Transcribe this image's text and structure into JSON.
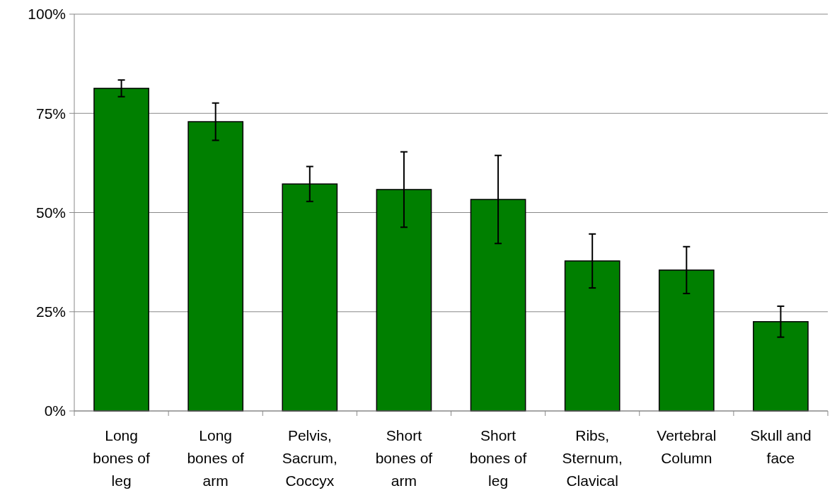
{
  "chart_data": {
    "type": "bar",
    "categories": [
      "Long\nbones of\nleg",
      "Long\nbones of\narm",
      "Pelvis,\nSacrum,\nCoccyx",
      "Short\nbones of\narm",
      "Short\nbones of\nleg",
      "Ribs,\nSternum,\nClavical",
      "Vertebral\nColumn",
      "Skull and\nface"
    ],
    "values": [
      81.3,
      72.9,
      57.2,
      55.8,
      53.3,
      37.8,
      35.5,
      22.5
    ],
    "errors": [
      2.1,
      4.7,
      4.4,
      9.5,
      11.1,
      6.8,
      5.9,
      3.9
    ],
    "color": "#007f00",
    "ylim": [
      0,
      100
    ],
    "yticks": [
      {
        "value": 0,
        "label": "0%"
      },
      {
        "value": 25,
        "label": "25%"
      },
      {
        "value": 50,
        "label": "50%"
      },
      {
        "value": 75,
        "label": "75%"
      },
      {
        "value": 100,
        "label": "100%"
      }
    ],
    "grid": "y"
  }
}
